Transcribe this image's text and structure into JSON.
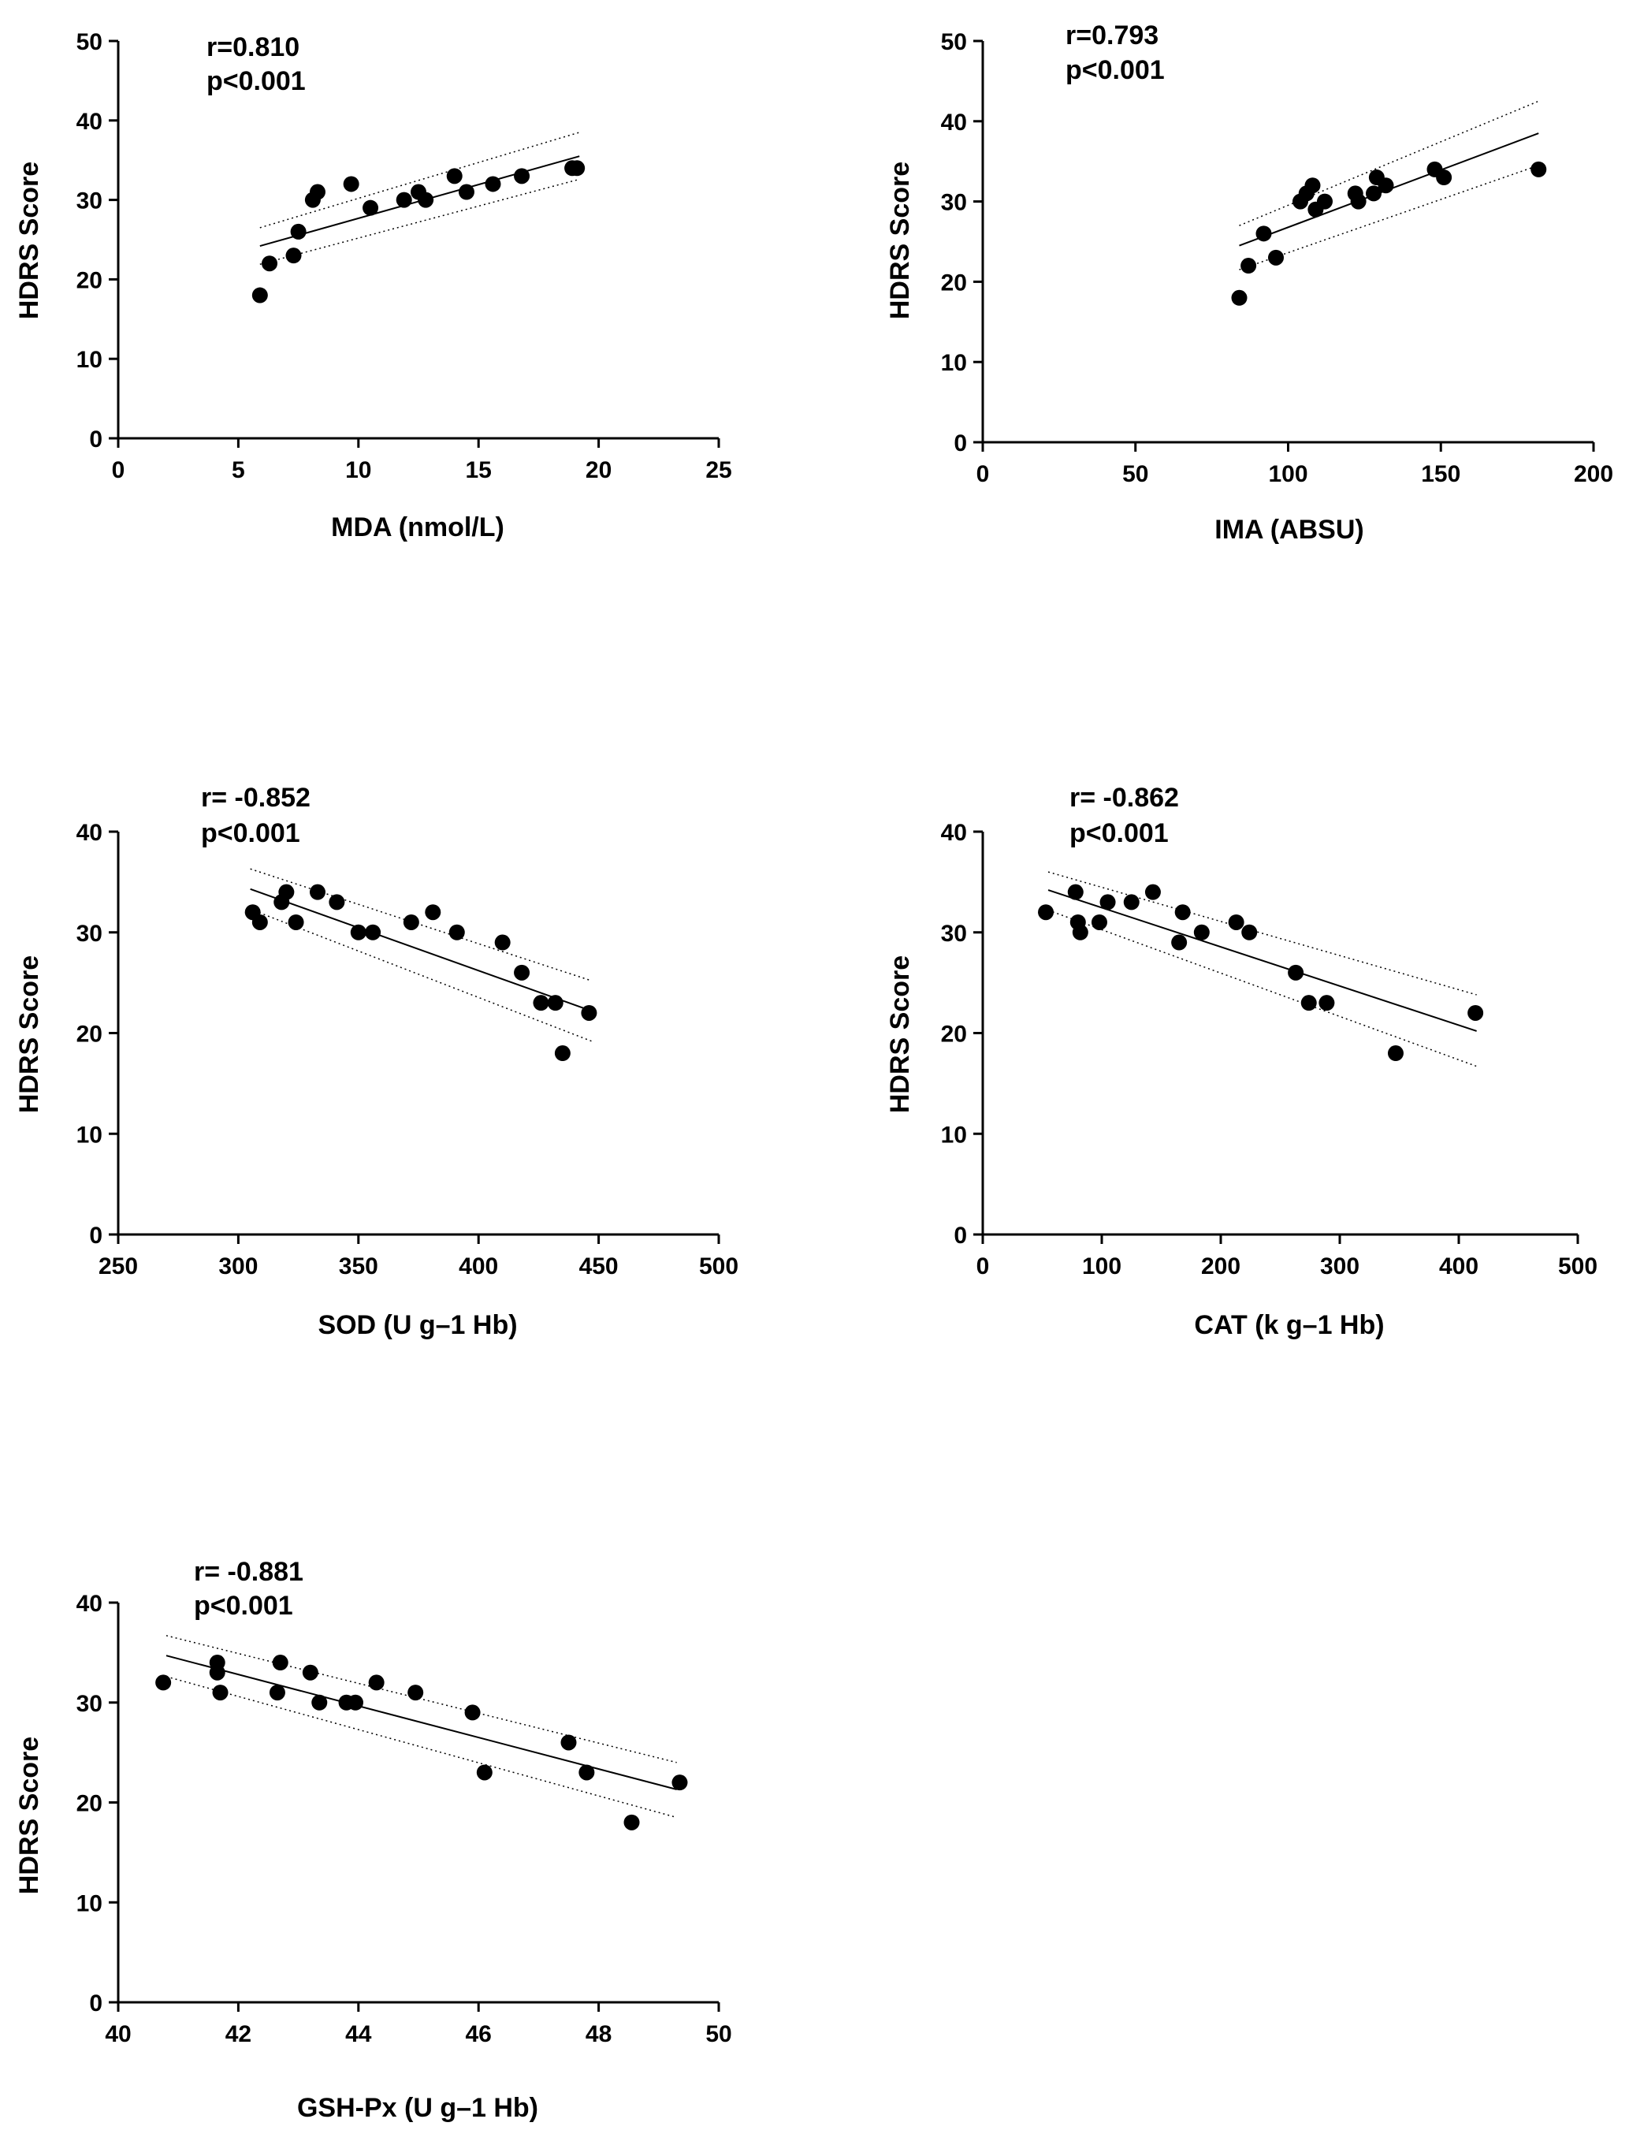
{
  "chart_data": [
    {
      "type": "scatter",
      "panel": "mda",
      "xlabel": "MDA (nmol/L)",
      "ylabel": "HDRS Score",
      "xlim": [
        0,
        25
      ],
      "ylim": [
        0,
        50
      ],
      "xticks": [
        0,
        5,
        10,
        15,
        20,
        25
      ],
      "yticks": [
        0,
        10,
        20,
        30,
        40,
        50
      ],
      "annotation": [
        "r=0.810",
        "p<0.001"
      ],
      "fit_x": [
        5.9,
        19.2
      ],
      "fit": [
        24.2,
        35.5
      ],
      "ci_upper": [
        26.5,
        38.5
      ],
      "ci_lower": [
        21.9,
        32.6
      ],
      "points": [
        [
          5.9,
          18
        ],
        [
          6.3,
          22
        ],
        [
          7.3,
          23
        ],
        [
          7.5,
          26
        ],
        [
          8.1,
          30
        ],
        [
          8.3,
          31
        ],
        [
          9.7,
          32
        ],
        [
          10.5,
          29
        ],
        [
          11.9,
          30
        ],
        [
          12.5,
          31
        ],
        [
          12.8,
          30
        ],
        [
          14.0,
          33
        ],
        [
          14.5,
          31
        ],
        [
          15.6,
          32
        ],
        [
          16.8,
          33
        ],
        [
          18.9,
          34
        ],
        [
          19.1,
          34
        ]
      ]
    },
    {
      "type": "scatter",
      "panel": "ima",
      "xlabel": "IMA (ABSU)",
      "ylabel": "HDRS Score",
      "xlim": [
        0,
        200
      ],
      "ylim": [
        0,
        50
      ],
      "xticks": [
        0,
        50,
        100,
        150,
        200
      ],
      "yticks": [
        0,
        10,
        20,
        30,
        40,
        50
      ],
      "annotation": [
        "r=0.793",
        "p<0.001"
      ],
      "fit_x": [
        84,
        182
      ],
      "fit": [
        24.5,
        38.5
      ],
      "ci_upper": [
        27.0,
        42.5
      ],
      "ci_lower": [
        21.5,
        34.5
      ],
      "points": [
        [
          84,
          18
        ],
        [
          87,
          22
        ],
        [
          92,
          26
        ],
        [
          96,
          23
        ],
        [
          104,
          30
        ],
        [
          106,
          31
        ],
        [
          108,
          32
        ],
        [
          109,
          29
        ],
        [
          112,
          30
        ],
        [
          122,
          31
        ],
        [
          123,
          30
        ],
        [
          128,
          31
        ],
        [
          129,
          33
        ],
        [
          132,
          32
        ],
        [
          148,
          34
        ],
        [
          151,
          33
        ],
        [
          182,
          34
        ]
      ]
    },
    {
      "type": "scatter",
      "panel": "sod",
      "xlabel": "SOD (U g–1 Hb)",
      "ylabel": "HDRS Score",
      "xlim": [
        250,
        500
      ],
      "ylim": [
        0,
        40
      ],
      "xticks": [
        250,
        300,
        350,
        400,
        450,
        500
      ],
      "yticks": [
        0,
        10,
        20,
        30,
        40
      ],
      "annotation": [
        "r= -0.852",
        "p<0.001"
      ],
      "fit_x": [
        305,
        447
      ],
      "fit": [
        34.3,
        22.2
      ],
      "ci_upper": [
        36.3,
        25.2
      ],
      "ci_lower": [
        32.3,
        19.2
      ],
      "points": [
        [
          306,
          32
        ],
        [
          309,
          31
        ],
        [
          318,
          33
        ],
        [
          320,
          34
        ],
        [
          324,
          31
        ],
        [
          333,
          34
        ],
        [
          341,
          33
        ],
        [
          350,
          30
        ],
        [
          356,
          30
        ],
        [
          372,
          31
        ],
        [
          381,
          32
        ],
        [
          391,
          30
        ],
        [
          410,
          29
        ],
        [
          418,
          26
        ],
        [
          426,
          23
        ],
        [
          432,
          23
        ],
        [
          435,
          18
        ],
        [
          446,
          22
        ]
      ]
    },
    {
      "type": "scatter",
      "panel": "cat",
      "xlabel": "CAT (k g–1 Hb)",
      "ylabel": "HDRS Score",
      "xlim": [
        0,
        500
      ],
      "ylim": [
        0,
        40
      ],
      "xticks": [
        0,
        100,
        200,
        300,
        400,
        500
      ],
      "yticks": [
        0,
        10,
        20,
        30,
        40
      ],
      "annotation": [
        "r= -0.862",
        "p<0.001"
      ],
      "fit_x": [
        55,
        415
      ],
      "fit": [
        34.2,
        20.2
      ],
      "ci_upper": [
        36.0,
        23.8
      ],
      "ci_lower": [
        32.2,
        16.7
      ],
      "points": [
        [
          53,
          32
        ],
        [
          78,
          34
        ],
        [
          80,
          31
        ],
        [
          82,
          30
        ],
        [
          98,
          31
        ],
        [
          105,
          33
        ],
        [
          125,
          33
        ],
        [
          143,
          34
        ],
        [
          165,
          29
        ],
        [
          168,
          32
        ],
        [
          184,
          30
        ],
        [
          213,
          31
        ],
        [
          224,
          30
        ],
        [
          263,
          26
        ],
        [
          274,
          23
        ],
        [
          289,
          23
        ],
        [
          347,
          18
        ],
        [
          414,
          22
        ]
      ]
    },
    {
      "type": "scatter",
      "panel": "gsh",
      "xlabel": "GSH-Px (U g–1 Hb)",
      "ylabel": "HDRS Score",
      "xlim": [
        40,
        50
      ],
      "ylim": [
        0,
        40
      ],
      "xticks": [
        40,
        42,
        44,
        46,
        48,
        50
      ],
      "yticks": [
        0,
        10,
        20,
        30,
        40
      ],
      "annotation": [
        "r= -0.881",
        "p<0.001"
      ],
      "fit_x": [
        40.8,
        49.3
      ],
      "fit": [
        34.7,
        21.3
      ],
      "ci_upper": [
        36.7,
        24.0
      ],
      "ci_lower": [
        32.6,
        18.5
      ],
      "points": [
        [
          40.75,
          32
        ],
        [
          41.65,
          34
        ],
        [
          41.65,
          33
        ],
        [
          41.7,
          31
        ],
        [
          42.65,
          31
        ],
        [
          42.7,
          34
        ],
        [
          43.2,
          33
        ],
        [
          43.35,
          30
        ],
        [
          43.8,
          30
        ],
        [
          43.95,
          30
        ],
        [
          44.3,
          32
        ],
        [
          44.95,
          31
        ],
        [
          45.9,
          29
        ],
        [
          46.1,
          23
        ],
        [
          47.5,
          26
        ],
        [
          47.8,
          23
        ],
        [
          48.55,
          18
        ],
        [
          49.35,
          22
        ]
      ]
    }
  ]
}
